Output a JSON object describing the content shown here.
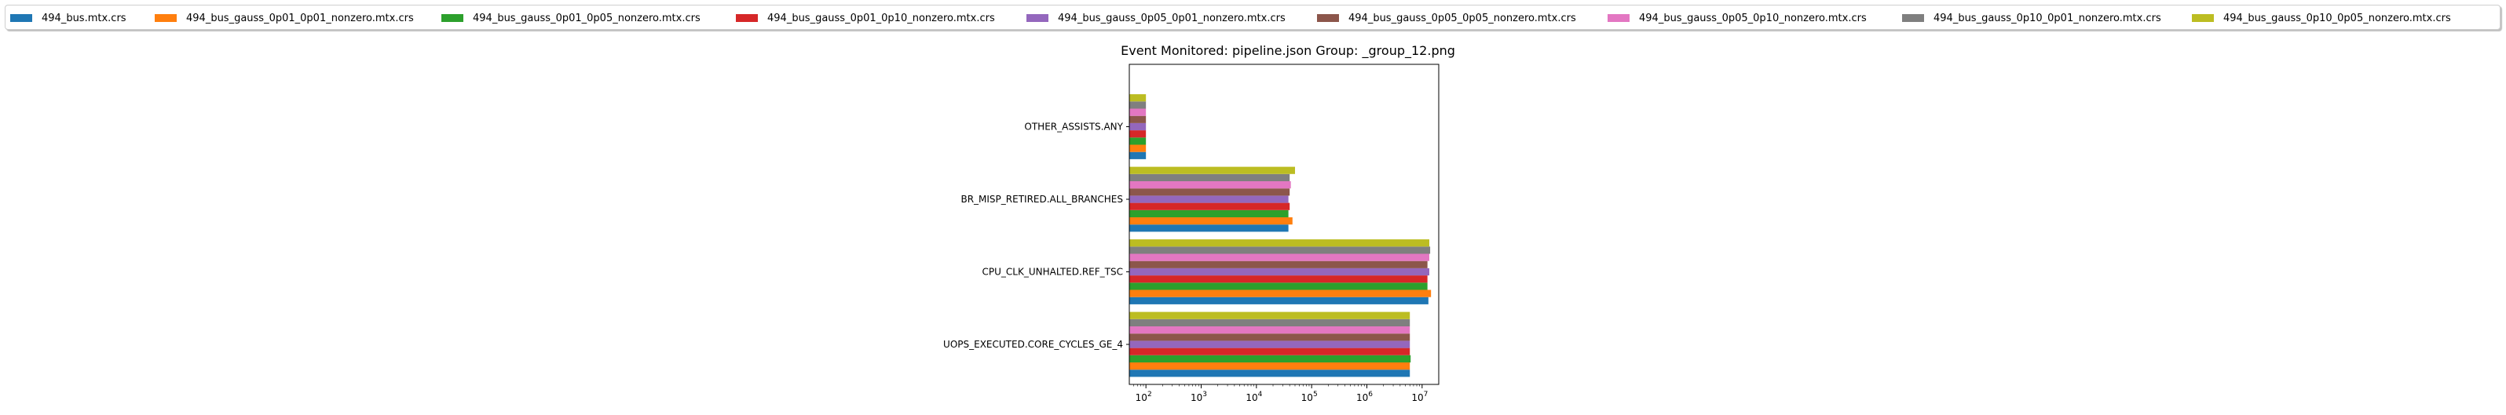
{
  "chart_data": {
    "type": "bar",
    "orientation": "horizontal",
    "title": "Event Monitored: pipeline.json Group: _group_12.png",
    "xlabel": "",
    "ylabel": "",
    "xscale": "log",
    "xlim": [
      50,
      20000000
    ],
    "x_tick_labels": [
      "10",
      "2",
      "10",
      "3",
      "10",
      "4",
      "10",
      "5",
      "10",
      "6",
      "10",
      "7"
    ],
    "legend_position": "top",
    "categories": [
      "UOPS_EXECUTED.CORE_CYCLES_GE_4",
      "CPU_CLK_UNHALTED.REF_TSC",
      "BR_MISP_RETIRED.ALL_BRANCHES",
      "OTHER_ASSISTS.ANY"
    ],
    "series": [
      {
        "name": "494_bus.mtx.crs",
        "color": "#1f77b4",
        "values": [
          6000000,
          13000000,
          38000,
          100
        ]
      },
      {
        "name": "494_bus_gauss_0p01_0p01_nonzero.mtx.crs",
        "color": "#ff7f0e",
        "values": [
          6000000,
          14500000,
          45000,
          100
        ]
      },
      {
        "name": "494_bus_gauss_0p01_0p05_nonzero.mtx.crs",
        "color": "#2ca02c",
        "values": [
          6200000,
          12500000,
          38000,
          100
        ]
      },
      {
        "name": "494_bus_gauss_0p01_0p10_nonzero.mtx.crs",
        "color": "#d62728",
        "values": [
          6000000,
          12500000,
          40000,
          100
        ]
      },
      {
        "name": "494_bus_gauss_0p05_0p01_nonzero.mtx.crs",
        "color": "#9467bd",
        "values": [
          6000000,
          13500000,
          38000,
          100
        ]
      },
      {
        "name": "494_bus_gauss_0p05_0p05_nonzero.mtx.crs",
        "color": "#8c564b",
        "values": [
          6000000,
          12500000,
          40000,
          100
        ]
      },
      {
        "name": "494_bus_gauss_0p05_0p10_nonzero.mtx.crs",
        "color": "#e377c2",
        "values": [
          6000000,
          13500000,
          42000,
          100
        ]
      },
      {
        "name": "494_bus_gauss_0p10_0p01_nonzero.mtx.crs",
        "color": "#7f7f7f",
        "values": [
          6000000,
          14000000,
          40000,
          100
        ]
      },
      {
        "name": "494_bus_gauss_0p10_0p05_nonzero.mtx.crs",
        "color": "#bcbd22",
        "values": [
          6000000,
          13500000,
          50000,
          100
        ]
      }
    ]
  }
}
